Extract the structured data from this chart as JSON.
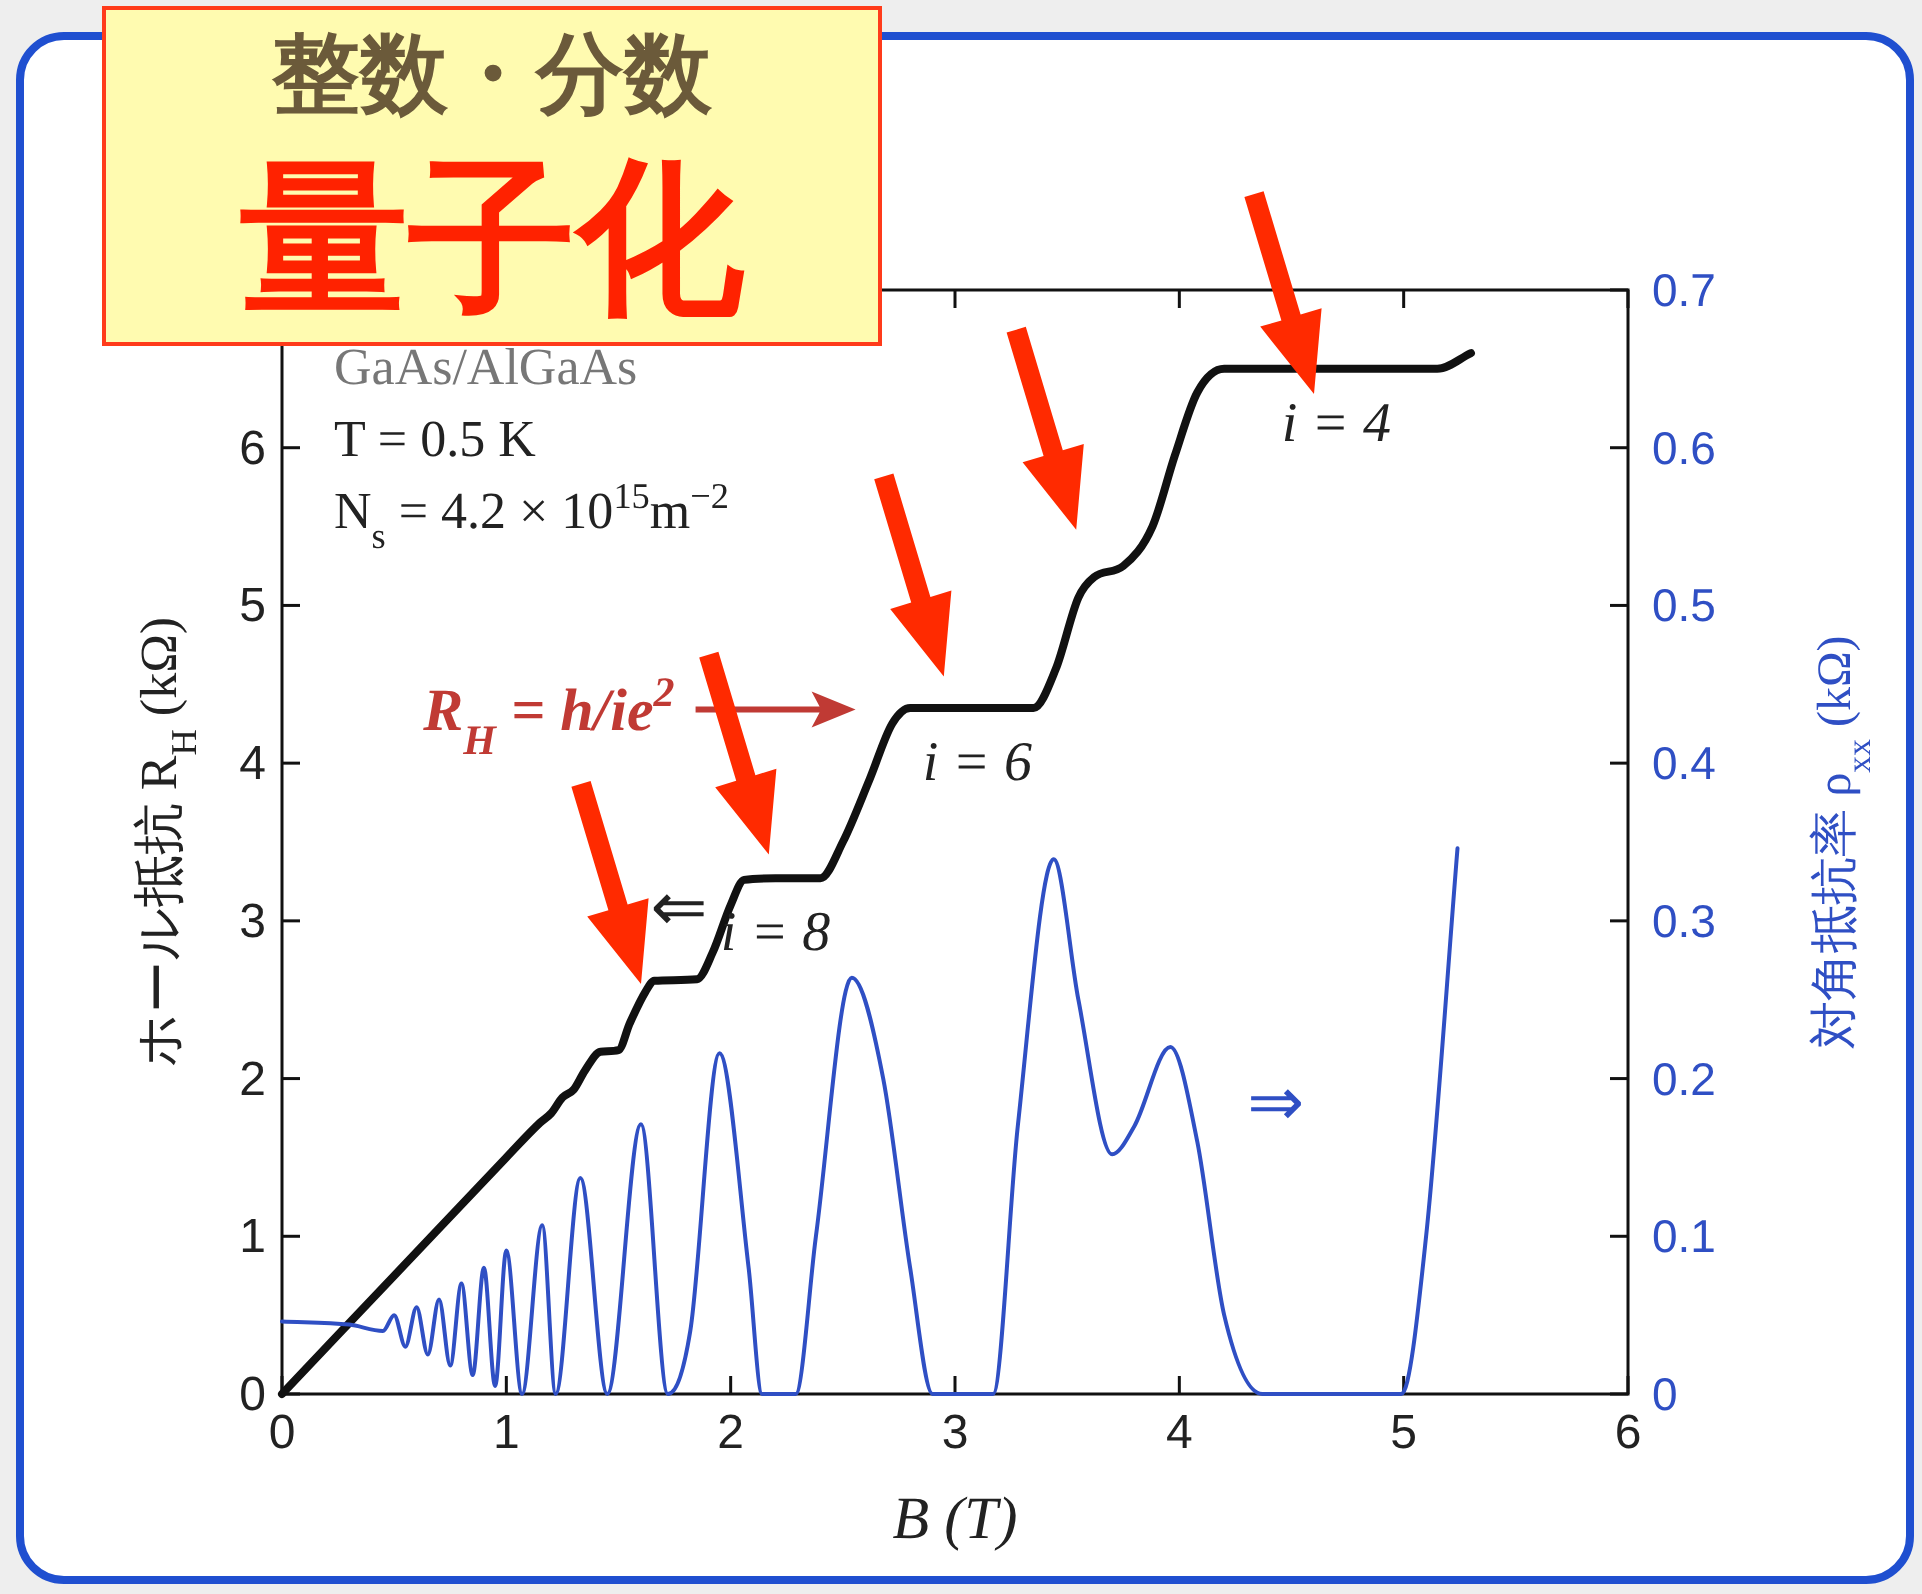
{
  "chart_data": {
    "type": "line",
    "title": "整数・分数",
    "subtitle": "量子化",
    "xlabel": "B (T)",
    "ylabel": "ホール抵抗  R$_{H}$ (kΩ)",
    "y2label": "対角抵抗率  ρ$_{xx}$ (kΩ)",
    "xlim": [
      0,
      6
    ],
    "xticks": [
      0,
      1,
      2,
      3,
      4,
      5,
      6
    ],
    "ylim": [
      0,
      7
    ],
    "yticks": [
      0,
      1,
      2,
      3,
      4,
      5,
      6
    ],
    "y2lim": [
      0,
      0.7
    ],
    "y2ticks": [
      {
        "value": 0,
        "label": "0"
      },
      0.1,
      0.2,
      0.3,
      0.4,
      0.5,
      0.6,
      0.7
    ],
    "grid": false,
    "line_style": "solid",
    "marker": "none",
    "series": [
      {
        "color": "#111111",
        "x": [
          0,
          0.5,
          1.0,
          1.15,
          1.2,
          1.25,
          1.3,
          1.35,
          1.42,
          1.5,
          1.55,
          1.62,
          1.66,
          1.85,
          1.92,
          2.0,
          2.06,
          2.2,
          2.4,
          2.5,
          2.62,
          2.72,
          2.8,
          3.1,
          3.35,
          3.45,
          3.55,
          3.62,
          3.75,
          3.88,
          3.98,
          4.08,
          4.2,
          4.7,
          5.15,
          5.3
        ],
        "values": [
          0,
          0.75,
          1.5,
          1.72,
          1.78,
          1.88,
          1.93,
          2.05,
          2.17,
          2.18,
          2.35,
          2.55,
          2.62,
          2.63,
          2.8,
          3.1,
          3.26,
          3.27,
          3.27,
          3.5,
          3.9,
          4.25,
          4.35,
          4.35,
          4.35,
          4.6,
          5.05,
          5.18,
          5.25,
          5.5,
          5.95,
          6.35,
          6.5,
          6.5,
          6.5,
          6.6
        ]
      },
      {
        "color": "#2f4fc4",
        "axis": "y2",
        "x": [
          0,
          0.3,
          0.45,
          0.5,
          0.55,
          0.6,
          0.65,
          0.7,
          0.75,
          0.8,
          0.85,
          0.9,
          0.95,
          1.0,
          1.07,
          1.16,
          1.22,
          1.33,
          1.45,
          1.6,
          1.72,
          1.82,
          1.95,
          2.08,
          2.14,
          2.29,
          2.38,
          2.54,
          2.68,
          2.8,
          2.9,
          3.17,
          3.28,
          3.44,
          3.55,
          3.7,
          3.8,
          3.96,
          4.08,
          4.2,
          4.37,
          4.99,
          5.1,
          5.24
        ],
        "values": [
          0.046,
          0.044,
          0.04,
          0.05,
          0.03,
          0.055,
          0.025,
          0.06,
          0.018,
          0.07,
          0.012,
          0.08,
          0.005,
          0.091,
          0,
          0.107,
          0,
          0.137,
          0,
          0.171,
          0,
          0.04,
          0.216,
          0.08,
          0,
          0,
          0.1,
          0.264,
          0.2,
          0.08,
          0,
          0,
          0.17,
          0.339,
          0.25,
          0.152,
          0.17,
          0.22,
          0.16,
          0.05,
          0,
          0,
          0.1,
          0.346
        ]
      }
    ],
    "annotations": [
      "GaAs/AlGaAs",
      "T = 0.5 K",
      "N$_{s}$ = 4.2 × 10$^{15}$m$^{−2}$",
      "⇐",
      "⇒",
      "R$_{H}$ = h/ie$^{2}$",
      {
        "text": "i = 4",
        "x": 4.7,
        "y": 6.5
      },
      {
        "text": "i = 6",
        "x": 3.1,
        "y": 4.35
      },
      {
        "text": "i = 8",
        "x": 2.2,
        "y": 3.27
      }
    ]
  }
}
